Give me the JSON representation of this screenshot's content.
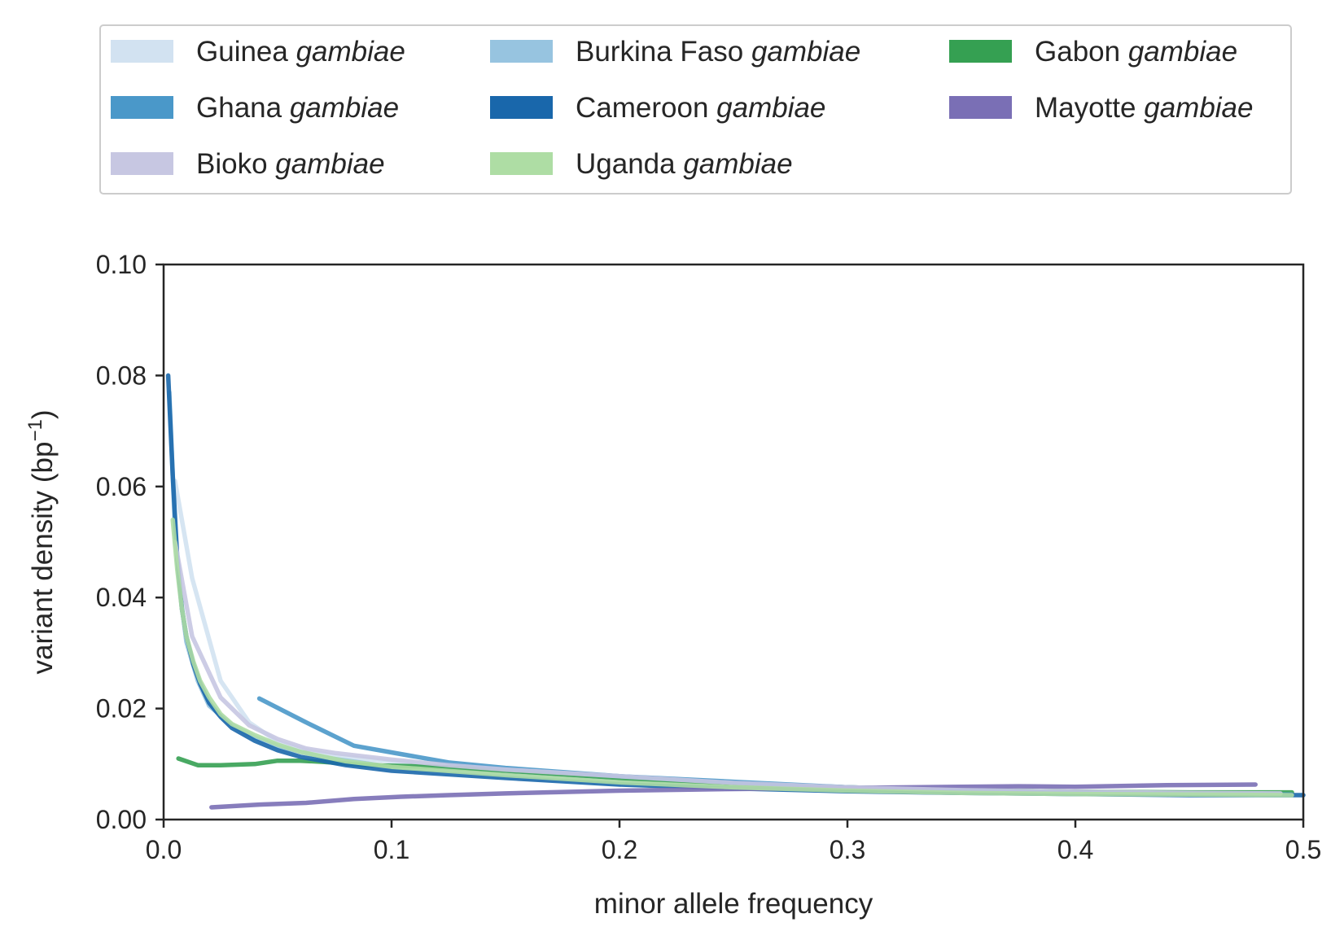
{
  "chart_data": {
    "type": "line",
    "xlabel": "minor allele frequency",
    "ylabel": "variant density (bp",
    "ylabel_superscript": "−1",
    "ylabel_suffix": ")",
    "xlim": [
      0,
      0.5
    ],
    "ylim": [
      0,
      0.1
    ],
    "xticks": [
      "0.0",
      "0.1",
      "0.2",
      "0.3",
      "0.4",
      "0.5"
    ],
    "yticks": [
      "0.00",
      "0.02",
      "0.04",
      "0.06",
      "0.08",
      "0.10"
    ],
    "grid": false,
    "legend_position": "top",
    "series": [
      {
        "name": "Guinea",
        "name_italic": "gambiae",
        "color": "#d2e2f1",
        "x": [
          0.005,
          0.0125,
          0.025,
          0.0375,
          0.05,
          0.0625,
          0.075,
          0.1,
          0.15,
          0.2,
          0.25,
          0.3,
          0.35,
          0.4,
          0.45,
          0.495
        ],
        "y": [
          0.061,
          0.0435,
          0.025,
          0.0175,
          0.014,
          0.0125,
          0.0115,
          0.0105,
          0.009,
          0.0078,
          0.0065,
          0.0058,
          0.0052,
          0.0049,
          0.0046,
          0.0045
        ]
      },
      {
        "name": "Burkina Faso",
        "name_italic": "gambiae",
        "color": "#97c4e0",
        "x": [
          0.0025,
          0.005,
          0.0075,
          0.01,
          0.015,
          0.02,
          0.03,
          0.04,
          0.05,
          0.07,
          0.1,
          0.15,
          0.2,
          0.25,
          0.3,
          0.35,
          0.4,
          0.45,
          0.495
        ],
        "y": [
          0.077,
          0.052,
          0.04,
          0.032,
          0.025,
          0.0205,
          0.017,
          0.0148,
          0.0132,
          0.0112,
          0.0095,
          0.0082,
          0.0068,
          0.0058,
          0.0052,
          0.0049,
          0.0046,
          0.0045,
          0.0044
        ]
      },
      {
        "name": "Gabon",
        "name_italic": "gambiae",
        "color": "#35a052",
        "x": [
          0.0065,
          0.015,
          0.025,
          0.04,
          0.05,
          0.06,
          0.07,
          0.09,
          0.12,
          0.15,
          0.2,
          0.25,
          0.3,
          0.35,
          0.4,
          0.45,
          0.495
        ],
        "y": [
          0.011,
          0.0098,
          0.0098,
          0.01,
          0.0106,
          0.0106,
          0.0104,
          0.0098,
          0.0095,
          0.0088,
          0.0075,
          0.0065,
          0.0058,
          0.0053,
          0.005,
          0.0049,
          0.0049
        ]
      },
      {
        "name": "Ghana",
        "name_italic": "gambiae",
        "color": "#4a98c9",
        "x": [
          0.042,
          0.0625,
          0.0835,
          0.104,
          0.125,
          0.15,
          0.2,
          0.25,
          0.3,
          0.35,
          0.4,
          0.45,
          0.495
        ],
        "y": [
          0.0218,
          0.0175,
          0.0133,
          0.0118,
          0.0103,
          0.0093,
          0.0078,
          0.0068,
          0.0058,
          0.0052,
          0.0048,
          0.0046,
          0.0045
        ]
      },
      {
        "name": "Cameroon",
        "name_italic": "gambiae",
        "color": "#1967ab",
        "x": [
          0.002,
          0.004,
          0.006,
          0.008,
          0.01,
          0.013,
          0.016,
          0.02,
          0.025,
          0.03,
          0.04,
          0.05,
          0.06,
          0.08,
          0.1,
          0.15,
          0.2,
          0.25,
          0.3,
          0.35,
          0.4,
          0.45,
          0.5
        ],
        "y": [
          0.08,
          0.062,
          0.047,
          0.038,
          0.033,
          0.028,
          0.0245,
          0.021,
          0.0185,
          0.0165,
          0.0142,
          0.0125,
          0.0113,
          0.0098,
          0.0088,
          0.0075,
          0.0063,
          0.0056,
          0.0051,
          0.0048,
          0.0046,
          0.0044,
          0.0044
        ]
      },
      {
        "name": "Mayotte",
        "name_italic": "gambiae",
        "color": "#7a6fb5",
        "x": [
          0.021,
          0.042,
          0.0625,
          0.0835,
          0.104,
          0.125,
          0.15,
          0.2,
          0.25,
          0.3,
          0.35,
          0.375,
          0.4,
          0.44,
          0.479
        ],
        "y": [
          0.0022,
          0.0027,
          0.003,
          0.0037,
          0.0041,
          0.0044,
          0.0047,
          0.0052,
          0.0055,
          0.0057,
          0.0059,
          0.006,
          0.0059,
          0.0062,
          0.0063
        ]
      },
      {
        "name": "Bioko",
        "name_italic": "gambiae",
        "color": "#c7c7e2",
        "x": [
          0.005,
          0.0125,
          0.025,
          0.0375,
          0.05,
          0.0625,
          0.075,
          0.1,
          0.125,
          0.15,
          0.2,
          0.25,
          0.3,
          0.35,
          0.4,
          0.45,
          0.49
        ],
        "y": [
          0.05,
          0.033,
          0.022,
          0.017,
          0.0145,
          0.0128,
          0.012,
          0.0108,
          0.0098,
          0.009,
          0.0078,
          0.0066,
          0.0058,
          0.0053,
          0.005,
          0.0048,
          0.0047
        ]
      },
      {
        "name": "Uganda",
        "name_italic": "gambiae",
        "color": "#aedda4",
        "x": [
          0.004,
          0.006,
          0.008,
          0.01,
          0.013,
          0.016,
          0.02,
          0.025,
          0.03,
          0.04,
          0.05,
          0.06,
          0.08,
          0.1,
          0.15,
          0.2,
          0.25,
          0.3,
          0.35,
          0.4,
          0.45,
          0.495
        ],
        "y": [
          0.054,
          0.045,
          0.038,
          0.033,
          0.0285,
          0.025,
          0.022,
          0.019,
          0.0172,
          0.0152,
          0.0135,
          0.0122,
          0.0105,
          0.0095,
          0.008,
          0.0067,
          0.0058,
          0.0052,
          0.0048,
          0.0046,
          0.0045,
          0.0044
        ]
      }
    ]
  },
  "legend_order": [
    "Guinea",
    "Ghana",
    "Bioko",
    "Burkina Faso",
    "Cameroon",
    "Uganda",
    "Gabon",
    "Mayotte"
  ]
}
